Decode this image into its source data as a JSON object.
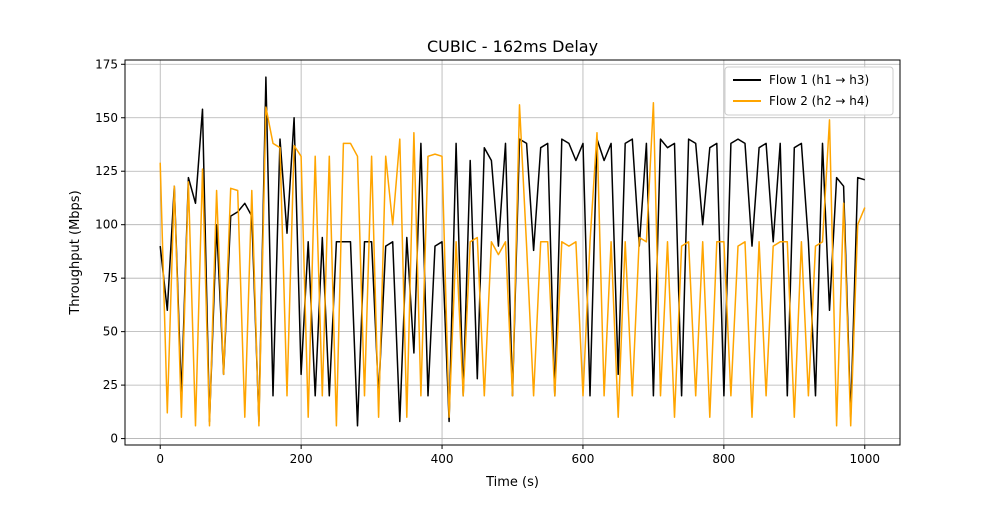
{
  "chart_data": {
    "type": "line",
    "title": "CUBIC - 162ms Delay",
    "xlabel": "Time (s)",
    "ylabel": "Throughput (Mbps)",
    "xlim": [
      -50,
      1050
    ],
    "ylim": [
      -3,
      177
    ],
    "x_ticks": [
      0,
      200,
      400,
      600,
      800,
      1000
    ],
    "y_ticks": [
      0,
      25,
      50,
      75,
      100,
      125,
      150,
      175
    ],
    "grid": true,
    "legend_position": "top-right",
    "x": [
      0,
      10,
      20,
      30,
      40,
      50,
      60,
      70,
      80,
      90,
      100,
      110,
      120,
      130,
      140,
      150,
      160,
      170,
      180,
      190,
      200,
      210,
      220,
      230,
      240,
      250,
      260,
      270,
      280,
      290,
      300,
      310,
      320,
      330,
      340,
      350,
      360,
      370,
      380,
      390,
      400,
      410,
      420,
      430,
      440,
      450,
      460,
      470,
      480,
      490,
      500,
      510,
      520,
      530,
      540,
      550,
      560,
      570,
      580,
      590,
      600,
      610,
      620,
      630,
      640,
      650,
      660,
      670,
      680,
      690,
      700,
      710,
      720,
      730,
      740,
      750,
      760,
      770,
      780,
      790,
      800,
      810,
      820,
      830,
      840,
      850,
      860,
      870,
      880,
      890,
      900,
      910,
      920,
      930,
      940,
      950,
      960,
      970,
      980,
      990,
      1000
    ],
    "series": [
      {
        "name": "Flow 1 (h1 → h3)",
        "color": "#000000",
        "values": [
          90,
          60,
          118,
          20,
          122,
          110,
          154,
          8,
          100,
          30,
          104,
          106,
          110,
          104,
          8,
          169,
          20,
          140,
          96,
          150,
          30,
          92,
          20,
          94,
          20,
          92,
          92,
          92,
          6,
          92,
          92,
          20,
          90,
          92,
          8,
          94,
          40,
          138,
          20,
          90,
          92,
          8,
          138,
          20,
          130,
          28,
          136,
          130,
          90,
          138,
          20,
          140,
          138,
          88,
          136,
          138,
          20,
          140,
          138,
          130,
          138,
          20,
          140,
          130,
          138,
          30,
          138,
          140,
          90,
          138,
          20,
          140,
          136,
          138,
          20,
          140,
          138,
          100,
          136,
          138,
          20,
          138,
          140,
          138,
          90,
          136,
          138,
          92,
          138,
          20,
          136,
          138,
          92,
          20,
          138,
          60,
          122,
          118,
          10,
          122,
          121
        ]
      },
      {
        "name": "Flow 2 (h2 → h4)",
        "color": "#ffa500",
        "values": [
          129,
          12,
          118,
          10,
          120,
          6,
          126,
          6,
          116,
          30,
          117,
          116,
          10,
          116,
          6,
          155,
          138,
          136,
          20,
          137,
          132,
          10,
          132,
          20,
          132,
          6,
          138,
          138,
          132,
          20,
          132,
          10,
          132,
          100,
          140,
          10,
          143,
          20,
          132,
          133,
          132,
          10,
          92,
          20,
          92,
          94,
          20,
          92,
          86,
          92,
          20,
          156,
          90,
          20,
          92,
          92,
          20,
          92,
          90,
          92,
          20,
          92,
          143,
          20,
          92,
          10,
          92,
          20,
          94,
          92,
          157,
          20,
          92,
          10,
          90,
          92,
          20,
          92,
          10,
          92,
          92,
          20,
          90,
          92,
          10,
          92,
          20,
          90,
          92,
          92,
          10,
          92,
          20,
          90,
          92,
          149,
          6,
          110,
          6,
          100,
          108
        ]
      }
    ]
  }
}
